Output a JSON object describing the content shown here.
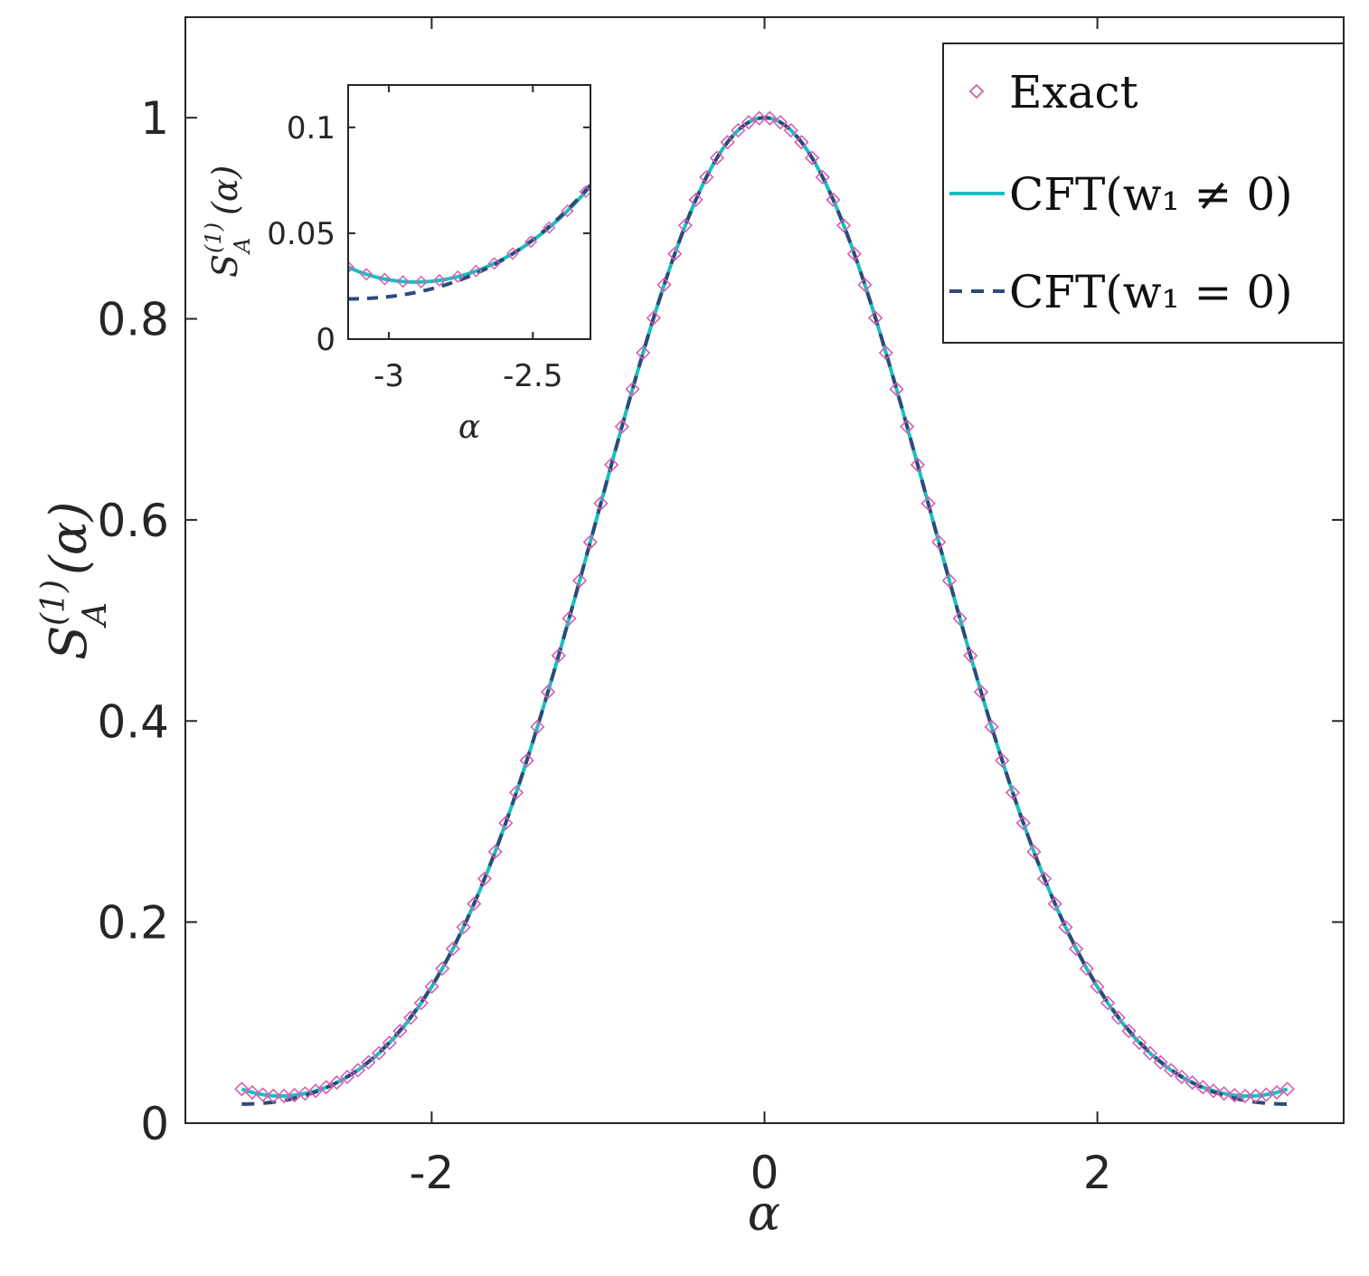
{
  "chart_data": [
    {
      "type": "line",
      "panel": "main",
      "title": "",
      "xlabel": "α",
      "ylabel": "S_A^(1)(α)",
      "ylabel_parts": {
        "symbol": "S",
        "subscript": "A",
        "superscript": "(1)",
        "argument": "(α)"
      },
      "xlim": [
        -3.48,
        3.48
      ],
      "ylim": [
        0,
        1.1
      ],
      "x_ticks": [
        -2,
        0,
        2
      ],
      "x_tick_labels": [
        "-2",
        "0",
        "2"
      ],
      "y_ticks": [
        0,
        0.2,
        0.4,
        0.6,
        0.8,
        1
      ],
      "y_tick_labels": [
        "0",
        "0.2",
        "0.4",
        "0.6",
        "0.8",
        "1"
      ],
      "grid": false,
      "legend_position": "top-right",
      "series": [
        {
          "name": "Exact",
          "label_text": "Exact",
          "style": "markers-diamond",
          "color": "#d65db1",
          "x_range": [
            -3.1416,
            3.1416
          ],
          "n_points": 100,
          "model": "exp(-0.5*a^2) with edge correction 0.034 at |a|=pi"
        },
        {
          "name": "CFT(w1 ≠ 0)",
          "label_text": "CFT(w₁ ≠ 0)",
          "style": "solid",
          "color": "#1abfbf",
          "x_range": [
            -3.1416,
            3.1416
          ],
          "edge_value": 0.034
        },
        {
          "name": "CFT(w1 = 0)",
          "label_text": "CFT(w₁ = 0)",
          "style": "dashed",
          "color": "#2d4a7a",
          "x_range": [
            -3.1416,
            3.1416
          ],
          "edge_value": 0.019
        }
      ]
    },
    {
      "type": "line",
      "panel": "inset",
      "xlabel": "α",
      "ylabel": "S_A^(1)(α)",
      "ylabel_parts": {
        "symbol": "S",
        "subscript": "A",
        "superscript": "(1)",
        "argument": "(α)"
      },
      "xlim": [
        -3.1416,
        -2.3
      ],
      "ylim": [
        0,
        0.12
      ],
      "x_ticks": [
        -3,
        -2.5
      ],
      "x_tick_labels": [
        "-3",
        "-2.5"
      ],
      "y_ticks": [
        0,
        0.05,
        0.1
      ],
      "y_tick_labels": [
        "0",
        "0.05",
        "0.1"
      ],
      "grid": false
    }
  ]
}
